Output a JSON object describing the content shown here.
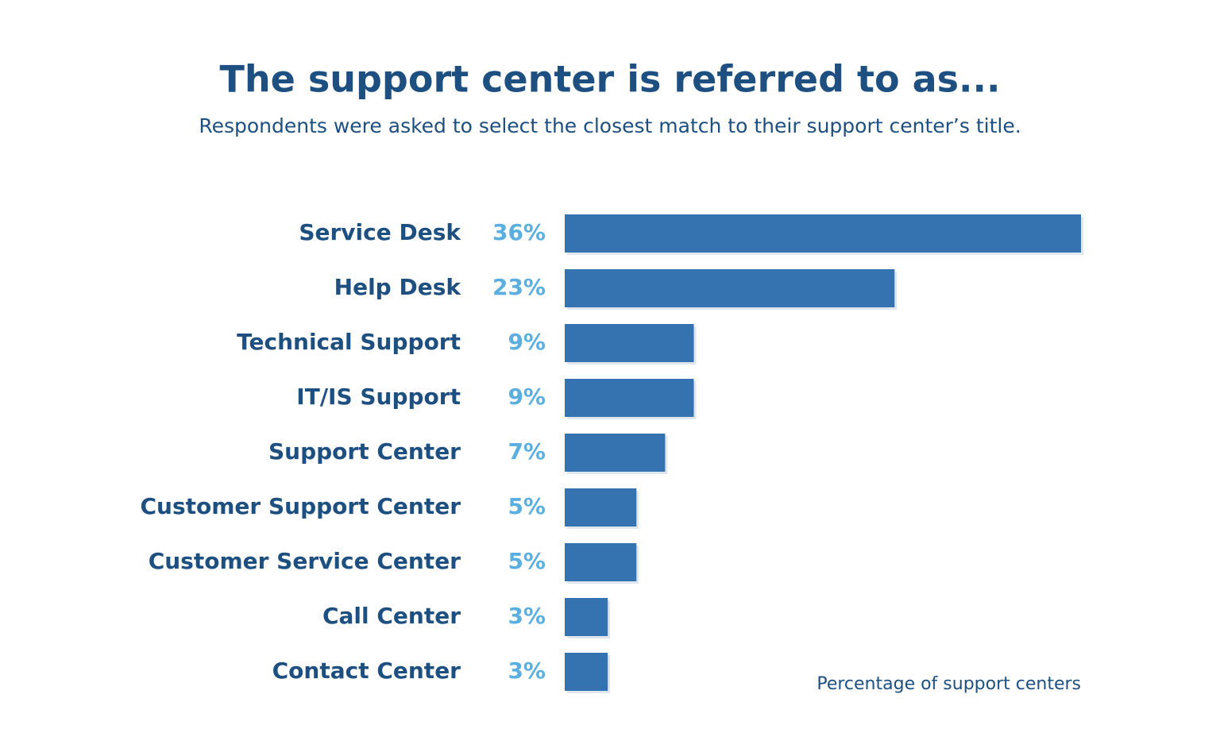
{
  "chart_data": {
    "type": "bar",
    "orientation": "horizontal",
    "title": "The support center is referred to as...",
    "subtitle": "Respondents were asked to select the closest match to their support center’s title.",
    "xlabel": "Percentage of support centers",
    "categories": [
      "Service Desk",
      "Help Desk",
      "Technical Support",
      "IT/IS Support",
      "Support Center",
      "Customer Support Center",
      "Customer Service Center",
      "Call Center",
      "Contact Center"
    ],
    "values": [
      36,
      23,
      9,
      9,
      7,
      5,
      5,
      3,
      3
    ],
    "value_labels": [
      "36%",
      "23%",
      "9%",
      "9%",
      "7%",
      "5%",
      "5%",
      "3%",
      "3%"
    ],
    "color": "#3572b0"
  }
}
